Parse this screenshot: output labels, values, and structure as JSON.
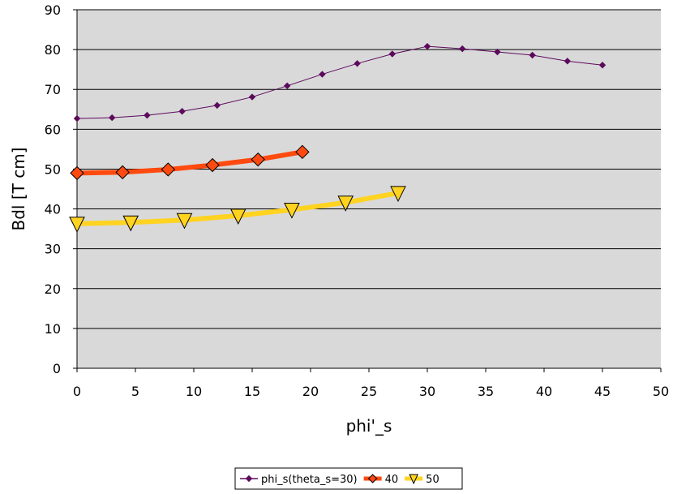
{
  "chart_data": {
    "type": "line",
    "title": "",
    "xlabel": "phi'_s",
    "ylabel": "Bdl [T cm]",
    "xlim": [
      0,
      50
    ],
    "ylim": [
      0,
      90
    ],
    "xticks": [
      0,
      5,
      10,
      15,
      20,
      25,
      30,
      35,
      40,
      45,
      50
    ],
    "yticks": [
      0,
      10,
      20,
      30,
      40,
      50,
      60,
      70,
      80,
      90
    ],
    "grid": "horizontal",
    "plot_background": "#d9d9d9",
    "legend_position": "bottom-center",
    "series": [
      {
        "name": "phi_s(theta_s=30)",
        "color": "#5c0a5c",
        "marker": "diamond-small",
        "x": [
          0,
          3,
          6,
          9,
          12,
          15,
          18,
          21,
          24,
          27,
          30,
          33,
          36,
          39,
          42,
          45
        ],
        "y": [
          62.7,
          62.9,
          63.5,
          64.5,
          66.0,
          68.1,
          70.9,
          73.8,
          76.5,
          78.9,
          80.8,
          80.2,
          79.4,
          78.6,
          77.1,
          76.1
        ]
      },
      {
        "name": "40",
        "color": "#ff4a0f",
        "marker": "diamond-large",
        "x": [
          0,
          3.9,
          7.8,
          11.6,
          15.5,
          19.3
        ],
        "y": [
          49.0,
          49.2,
          49.9,
          51.0,
          52.4,
          54.3
        ]
      },
      {
        "name": "50",
        "color": "#ffd320",
        "marker": "triangle-down",
        "x": [
          0,
          4.6,
          9.2,
          13.8,
          18.4,
          23.0,
          27.5
        ],
        "y": [
          36.3,
          36.6,
          37.2,
          38.3,
          39.8,
          41.6,
          44.0
        ]
      }
    ]
  }
}
